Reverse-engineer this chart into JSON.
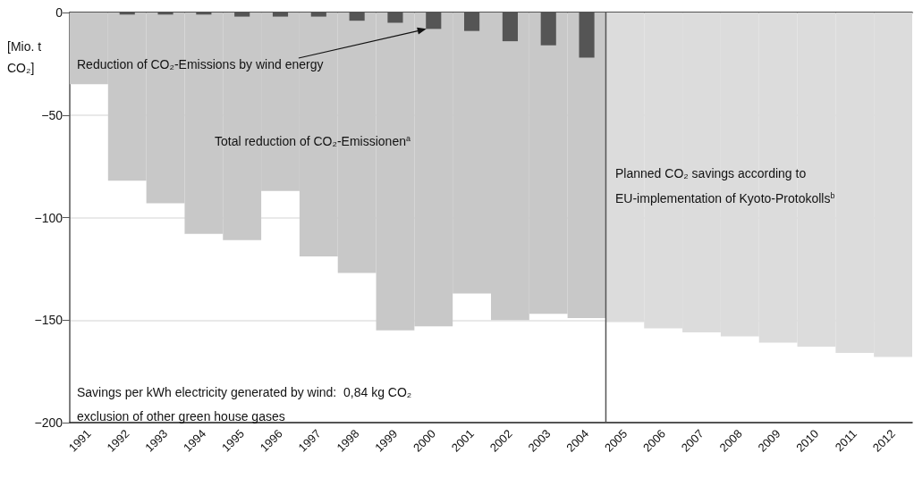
{
  "chart_data": {
    "type": "bar",
    "ylabel": "[Mio. t CO₂]",
    "categories": [
      "1991",
      "1992",
      "1993",
      "1994",
      "1995",
      "1996",
      "1997",
      "1998",
      "1999",
      "2000",
      "2001",
      "2002",
      "2003",
      "2004",
      "2005",
      "2006",
      "2007",
      "2008",
      "2009",
      "2010",
      "2011",
      "2012"
    ],
    "series": [
      {
        "color": "#c8c8c8",
        "values": [
          -35,
          -82,
          -93,
          -108,
          -111,
          -87,
          -119,
          -127,
          -155,
          -153,
          -137,
          -150,
          -147,
          -149,
          null,
          null,
          null,
          null,
          null,
          null,
          null,
          null
        ]
      },
      {
        "color": "#dcdcdc",
        "values": [
          null,
          null,
          null,
          null,
          null,
          null,
          null,
          null,
          null,
          null,
          null,
          null,
          null,
          null,
          -151,
          -154,
          -156,
          -158,
          -161,
          -163,
          -166,
          -168
        ]
      },
      {
        "color": "#555555",
        "values": [
          null,
          -1,
          -1,
          -1,
          -2,
          -2,
          -2,
          -4,
          -5,
          -8,
          -9,
          -14,
          -16,
          -22,
          null,
          null,
          null,
          null,
          null,
          null,
          null,
          null
        ]
      }
    ],
    "ylim": [
      -200,
      0
    ],
    "yticks": [
      -200,
      -150,
      -100,
      -50,
      0
    ],
    "grid": "y",
    "ref_lines": [
      {
        "axis": "x",
        "value": "2005",
        "color": "#555555"
      }
    ],
    "annotations": [
      {
        "text": "Reduction of CO₂-Emissions by wind energy",
        "x": "2000",
        "y": -8
      },
      "Total reduction of CO₂-Emissionen$^{a}$",
      "Planned CO₂ savings according to EU-implementation of Kyoto-Protokolls$^{b}$",
      "Savings per kWh electricity generated by wind:  0,84 kg CO₂",
      "exclusion of other green house gases"
    ]
  }
}
